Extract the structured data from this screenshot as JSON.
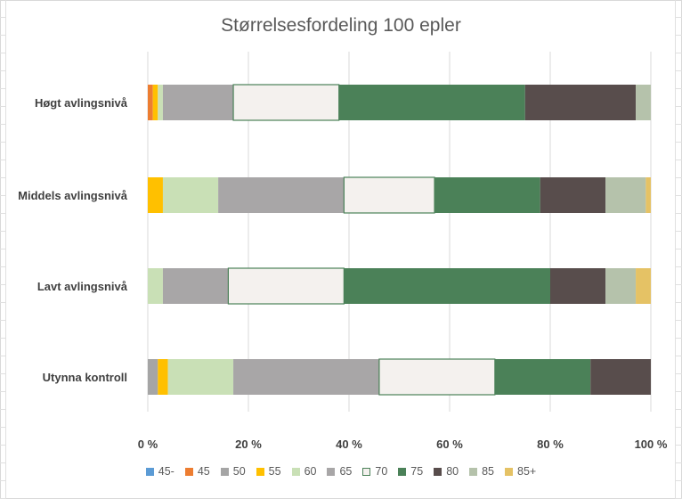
{
  "chart_data": {
    "type": "stacked-bar-100",
    "orientation": "horizontal",
    "title": "Størrelsesfordeling 100 epler",
    "categories": [
      "Høgt avlingsnivå",
      "Middels avlingsnivå",
      "Lavt avlingsnivå",
      "Utynna kontroll"
    ],
    "xlim": [
      0,
      100
    ],
    "xticks": [
      "0 %",
      "20 %",
      "40 %",
      "60 %",
      "80 %",
      "100 %"
    ],
    "legend_position": "bottom",
    "series": [
      {
        "name": "45-",
        "color": "#5b9bd5",
        "values": [
          0,
          0,
          0,
          0
        ]
      },
      {
        "name": "45",
        "color": "#ed7d31",
        "values": [
          1,
          0,
          0,
          0
        ]
      },
      {
        "name": "50",
        "color": "#a5a5a5",
        "values": [
          0,
          0,
          0,
          2
        ]
      },
      {
        "name": "55",
        "color": "#ffc000",
        "values": [
          1,
          3,
          0,
          2
        ]
      },
      {
        "name": "60",
        "color": "#c9e0b6",
        "values": [
          1,
          11,
          3,
          13
        ]
      },
      {
        "name": "65",
        "color": "#a8a6a7",
        "values": [
          14,
          25,
          13,
          29
        ]
      },
      {
        "name": "70",
        "color": "#f4f1ee",
        "outline": "#4b8158",
        "values": [
          21,
          18,
          23,
          23
        ]
      },
      {
        "name": "75",
        "color": "#4b8158",
        "values": [
          37,
          21,
          41,
          19
        ]
      },
      {
        "name": "80",
        "color": "#584d4c",
        "values": [
          22,
          13,
          11,
          12
        ]
      },
      {
        "name": "85",
        "color": "#b5c2ab",
        "values": [
          3,
          8,
          6,
          0
        ]
      },
      {
        "name": "85+",
        "color": "#e5c265",
        "values": [
          0,
          1,
          3,
          0
        ]
      }
    ]
  }
}
